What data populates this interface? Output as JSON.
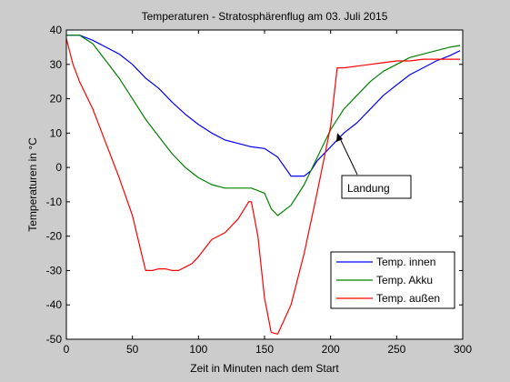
{
  "chart_data": {
    "type": "line",
    "title": "Temperaturen - Stratosphärenflug am 03. Juli 2015",
    "xlabel": "Zeit in Minuten nach dem Start",
    "ylabel": "Temperaturen in °C",
    "xlim": [
      0,
      300
    ],
    "ylim": [
      -50,
      40
    ],
    "xticks": [
      0,
      50,
      100,
      150,
      200,
      250,
      300
    ],
    "yticks": [
      40,
      30,
      20,
      10,
      0,
      -10,
      -20,
      -30,
      -40,
      -50
    ],
    "xtick_labels": [
      "0",
      "50",
      "100",
      "150",
      "200",
      "250",
      "300"
    ],
    "ytick_labels": [
      "40",
      "30",
      "20",
      "10",
      "0",
      "-10",
      "-20",
      "-30",
      "-40",
      "-50"
    ],
    "grid": false,
    "legend_position": "bottom-right",
    "series": [
      {
        "name": "Temp. innen",
        "color": "#0000ff",
        "x": [
          0,
          10,
          20,
          30,
          40,
          50,
          60,
          70,
          80,
          90,
          100,
          110,
          120,
          130,
          140,
          150,
          160,
          170,
          175,
          180,
          185,
          190,
          200,
          210,
          220,
          230,
          240,
          250,
          260,
          270,
          280,
          290,
          298
        ],
        "y": [
          38.5,
          38.5,
          37,
          35,
          33,
          30,
          26,
          23,
          19,
          15.5,
          12.5,
          10,
          8,
          7,
          6,
          5.5,
          3,
          -2.5,
          -2.5,
          -2.5,
          -1,
          2,
          6,
          10,
          13,
          17,
          21,
          24,
          27,
          29,
          31,
          32.5,
          34
        ]
      },
      {
        "name": "Temp. Akku",
        "color": "#008000",
        "x": [
          0,
          10,
          20,
          30,
          40,
          50,
          60,
          70,
          80,
          90,
          100,
          110,
          120,
          130,
          140,
          150,
          155,
          160,
          170,
          180,
          190,
          200,
          210,
          220,
          230,
          240,
          250,
          260,
          270,
          280,
          290,
          298
        ],
        "y": [
          38.5,
          38.5,
          36,
          31,
          26,
          20,
          14,
          9,
          4,
          0,
          -3,
          -5,
          -6,
          -6,
          -6,
          -7.5,
          -12,
          -14,
          -11,
          -5,
          3,
          11,
          17,
          21,
          25,
          28,
          30,
          32,
          33,
          34,
          35,
          35.5
        ]
      },
      {
        "name": "Temp. außen",
        "color": "#ff0000",
        "x": [
          0,
          5,
          10,
          20,
          30,
          40,
          50,
          55,
          60,
          65,
          70,
          75,
          80,
          85,
          90,
          95,
          100,
          110,
          120,
          130,
          138,
          140,
          145,
          150,
          155,
          160,
          170,
          180,
          190,
          200,
          205,
          210,
          220,
          230,
          240,
          250,
          260,
          270,
          280,
          290,
          298
        ],
        "y": [
          37.5,
          30,
          25,
          17,
          7,
          -3,
          -14,
          -22,
          -30,
          -30,
          -29.5,
          -29.5,
          -30,
          -30,
          -29,
          -28,
          -26,
          -21,
          -19,
          -15,
          -10,
          -10,
          -20,
          -38,
          -48,
          -48.5,
          -40,
          -25,
          -7,
          12,
          29,
          29,
          29.5,
          30,
          30.5,
          31,
          31,
          31.5,
          31.5,
          31.5,
          31.5
        ]
      }
    ],
    "annotations": [
      {
        "text": "Landung",
        "x": 208,
        "y": 11
      }
    ]
  }
}
